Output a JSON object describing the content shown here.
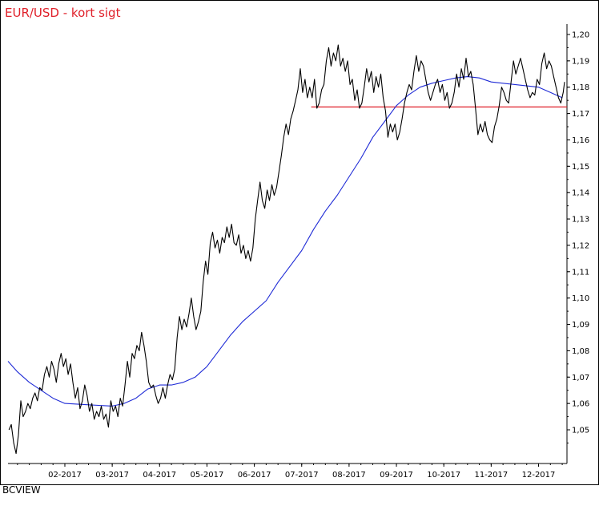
{
  "header": {
    "title": "EUR/USD - kort sigt"
  },
  "footer": {
    "brand": "BCVIEW"
  },
  "colors": {
    "price": "#000000",
    "moving_average": "#1f2bd6",
    "support": "#e0202a",
    "title": "#e0202a"
  },
  "chart_data": {
    "type": "line",
    "title": "EUR/USD - kort sigt",
    "xlabel": "",
    "ylabel": "",
    "x_tick_labels": [
      "02-2017",
      "03-2017",
      "04-2017",
      "05-2017",
      "06-2017",
      "07-2017",
      "08-2017",
      "09-2017",
      "10-2017",
      "11-2017",
      "12-2017"
    ],
    "y_tick_labels": [
      "1,20",
      "1,19",
      "1,18",
      "1,17",
      "1,16",
      "1,15",
      "1,14",
      "1,13",
      "1,12",
      "1,11",
      "1,10",
      "1,09",
      "1,08",
      "1,07",
      "1,06",
      "1,05"
    ],
    "ylim": [
      1.04,
      1.205
    ],
    "xlim_months": [
      0.8,
      12.6
    ],
    "y_axis_side": "right",
    "grid": false,
    "series": [
      {
        "style": "black-line",
        "points": [
          [
            0.82,
            1.05
          ],
          [
            0.87,
            1.052
          ],
          [
            0.92,
            1.045
          ],
          [
            0.97,
            1.041
          ],
          [
            1.02,
            1.048
          ],
          [
            1.07,
            1.061
          ],
          [
            1.12,
            1.055
          ],
          [
            1.17,
            1.057
          ],
          [
            1.22,
            1.06
          ],
          [
            1.27,
            1.058
          ],
          [
            1.32,
            1.062
          ],
          [
            1.37,
            1.064
          ],
          [
            1.42,
            1.061
          ],
          [
            1.47,
            1.066
          ],
          [
            1.52,
            1.065
          ],
          [
            1.57,
            1.071
          ],
          [
            1.62,
            1.074
          ],
          [
            1.67,
            1.07
          ],
          [
            1.72,
            1.076
          ],
          [
            1.77,
            1.073
          ],
          [
            1.82,
            1.068
          ],
          [
            1.87,
            1.075
          ],
          [
            1.92,
            1.079
          ],
          [
            1.97,
            1.074
          ],
          [
            2.02,
            1.077
          ],
          [
            2.07,
            1.071
          ],
          [
            2.12,
            1.075
          ],
          [
            2.17,
            1.068
          ],
          [
            2.22,
            1.062
          ],
          [
            2.27,
            1.066
          ],
          [
            2.32,
            1.058
          ],
          [
            2.37,
            1.061
          ],
          [
            2.42,
            1.067
          ],
          [
            2.47,
            1.063
          ],
          [
            2.52,
            1.057
          ],
          [
            2.57,
            1.06
          ],
          [
            2.62,
            1.054
          ],
          [
            2.67,
            1.057
          ],
          [
            2.72,
            1.055
          ],
          [
            2.77,
            1.059
          ],
          [
            2.82,
            1.054
          ],
          [
            2.87,
            1.056
          ],
          [
            2.92,
            1.051
          ],
          [
            2.97,
            1.061
          ],
          [
            3.02,
            1.057
          ],
          [
            3.07,
            1.059
          ],
          [
            3.12,
            1.055
          ],
          [
            3.17,
            1.062
          ],
          [
            3.22,
            1.059
          ],
          [
            3.27,
            1.067
          ],
          [
            3.32,
            1.076
          ],
          [
            3.37,
            1.07
          ],
          [
            3.42,
            1.079
          ],
          [
            3.47,
            1.077
          ],
          [
            3.52,
            1.082
          ],
          [
            3.57,
            1.08
          ],
          [
            3.62,
            1.087
          ],
          [
            3.67,
            1.082
          ],
          [
            3.72,
            1.076
          ],
          [
            3.77,
            1.068
          ],
          [
            3.82,
            1.066
          ],
          [
            3.87,
            1.067
          ],
          [
            3.92,
            1.063
          ],
          [
            3.97,
            1.06
          ],
          [
            4.02,
            1.062
          ],
          [
            4.07,
            1.066
          ],
          [
            4.12,
            1.062
          ],
          [
            4.17,
            1.067
          ],
          [
            4.22,
            1.071
          ],
          [
            4.27,
            1.069
          ],
          [
            4.32,
            1.073
          ],
          [
            4.37,
            1.085
          ],
          [
            4.42,
            1.093
          ],
          [
            4.47,
            1.088
          ],
          [
            4.52,
            1.092
          ],
          [
            4.57,
            1.089
          ],
          [
            4.62,
            1.094
          ],
          [
            4.67,
            1.1
          ],
          [
            4.72,
            1.093
          ],
          [
            4.77,
            1.088
          ],
          [
            4.82,
            1.091
          ],
          [
            4.87,
            1.095
          ],
          [
            4.92,
            1.106
          ],
          [
            4.97,
            1.114
          ],
          [
            5.02,
            1.109
          ],
          [
            5.07,
            1.121
          ],
          [
            5.12,
            1.125
          ],
          [
            5.17,
            1.119
          ],
          [
            5.22,
            1.122
          ],
          [
            5.27,
            1.117
          ],
          [
            5.32,
            1.123
          ],
          [
            5.37,
            1.121
          ],
          [
            5.42,
            1.127
          ],
          [
            5.47,
            1.123
          ],
          [
            5.52,
            1.128
          ],
          [
            5.57,
            1.121
          ],
          [
            5.62,
            1.12
          ],
          [
            5.67,
            1.124
          ],
          [
            5.72,
            1.117
          ],
          [
            5.77,
            1.12
          ],
          [
            5.82,
            1.115
          ],
          [
            5.87,
            1.118
          ],
          [
            5.92,
            1.114
          ],
          [
            5.97,
            1.119
          ],
          [
            6.02,
            1.13
          ],
          [
            6.07,
            1.137
          ],
          [
            6.12,
            1.144
          ],
          [
            6.17,
            1.137
          ],
          [
            6.22,
            1.134
          ],
          [
            6.27,
            1.141
          ],
          [
            6.32,
            1.137
          ],
          [
            6.37,
            1.143
          ],
          [
            6.42,
            1.139
          ],
          [
            6.47,
            1.142
          ],
          [
            6.52,
            1.148
          ],
          [
            6.57,
            1.154
          ],
          [
            6.62,
            1.161
          ],
          [
            6.67,
            1.166
          ],
          [
            6.72,
            1.162
          ],
          [
            6.77,
            1.168
          ],
          [
            6.82,
            1.171
          ],
          [
            6.87,
            1.175
          ],
          [
            6.92,
            1.179
          ],
          [
            6.97,
            1.187
          ],
          [
            7.02,
            1.178
          ],
          [
            7.07,
            1.183
          ],
          [
            7.12,
            1.176
          ],
          [
            7.17,
            1.18
          ],
          [
            7.22,
            1.176
          ],
          [
            7.27,
            1.183
          ],
          [
            7.32,
            1.172
          ],
          [
            7.37,
            1.174
          ],
          [
            7.42,
            1.179
          ],
          [
            7.47,
            1.181
          ],
          [
            7.52,
            1.19
          ],
          [
            7.57,
            1.195
          ],
          [
            7.62,
            1.188
          ],
          [
            7.67,
            1.193
          ],
          [
            7.72,
            1.19
          ],
          [
            7.77,
            1.196
          ],
          [
            7.82,
            1.188
          ],
          [
            7.87,
            1.191
          ],
          [
            7.92,
            1.186
          ],
          [
            7.97,
            1.19
          ],
          [
            8.02,
            1.181
          ],
          [
            8.07,
            1.183
          ],
          [
            8.12,
            1.175
          ],
          [
            8.17,
            1.179
          ],
          [
            8.22,
            1.172
          ],
          [
            8.27,
            1.174
          ],
          [
            8.32,
            1.18
          ],
          [
            8.37,
            1.187
          ],
          [
            8.42,
            1.182
          ],
          [
            8.47,
            1.186
          ],
          [
            8.52,
            1.178
          ],
          [
            8.57,
            1.184
          ],
          [
            8.62,
            1.18
          ],
          [
            8.67,
            1.185
          ],
          [
            8.72,
            1.176
          ],
          [
            8.77,
            1.171
          ],
          [
            8.82,
            1.161
          ],
          [
            8.87,
            1.166
          ],
          [
            8.92,
            1.163
          ],
          [
            8.97,
            1.166
          ],
          [
            9.02,
            1.16
          ],
          [
            9.07,
            1.163
          ],
          [
            9.12,
            1.168
          ],
          [
            9.17,
            1.174
          ],
          [
            9.22,
            1.178
          ],
          [
            9.27,
            1.181
          ],
          [
            9.32,
            1.179
          ],
          [
            9.37,
            1.186
          ],
          [
            9.42,
            1.192
          ],
          [
            9.47,
            1.186
          ],
          [
            9.52,
            1.19
          ],
          [
            9.57,
            1.188
          ],
          [
            9.62,
            1.183
          ],
          [
            9.67,
            1.178
          ],
          [
            9.72,
            1.175
          ],
          [
            9.77,
            1.178
          ],
          [
            9.82,
            1.181
          ],
          [
            9.87,
            1.183
          ],
          [
            9.92,
            1.178
          ],
          [
            9.97,
            1.181
          ],
          [
            10.02,
            1.175
          ],
          [
            10.07,
            1.178
          ],
          [
            10.12,
            1.172
          ],
          [
            10.17,
            1.174
          ],
          [
            10.22,
            1.178
          ],
          [
            10.27,
            1.185
          ],
          [
            10.32,
            1.18
          ],
          [
            10.37,
            1.187
          ],
          [
            10.42,
            1.183
          ],
          [
            10.47,
            1.191
          ],
          [
            10.52,
            1.184
          ],
          [
            10.57,
            1.186
          ],
          [
            10.62,
            1.181
          ],
          [
            10.67,
            1.172
          ],
          [
            10.72,
            1.162
          ],
          [
            10.77,
            1.166
          ],
          [
            10.82,
            1.163
          ],
          [
            10.87,
            1.167
          ],
          [
            10.92,
            1.162
          ],
          [
            10.97,
            1.16
          ],
          [
            11.02,
            1.159
          ],
          [
            11.07,
            1.165
          ],
          [
            11.12,
            1.168
          ],
          [
            11.17,
            1.173
          ],
          [
            11.22,
            1.18
          ],
          [
            11.27,
            1.178
          ],
          [
            11.32,
            1.175
          ],
          [
            11.37,
            1.174
          ],
          [
            11.42,
            1.182
          ],
          [
            11.47,
            1.19
          ],
          [
            11.52,
            1.185
          ],
          [
            11.57,
            1.188
          ],
          [
            11.62,
            1.191
          ],
          [
            11.67,
            1.187
          ],
          [
            11.72,
            1.183
          ],
          [
            11.77,
            1.179
          ],
          [
            11.82,
            1.176
          ],
          [
            11.87,
            1.178
          ],
          [
            11.92,
            1.177
          ],
          [
            11.97,
            1.183
          ],
          [
            12.02,
            1.181
          ],
          [
            12.07,
            1.189
          ],
          [
            12.12,
            1.193
          ],
          [
            12.17,
            1.187
          ],
          [
            12.22,
            1.19
          ],
          [
            12.27,
            1.188
          ],
          [
            12.32,
            1.184
          ],
          [
            12.37,
            1.18
          ],
          [
            12.42,
            1.176
          ],
          [
            12.47,
            1.174
          ],
          [
            12.52,
            1.178
          ],
          [
            12.55,
            1.182
          ]
        ]
      },
      {
        "style": "blue-moving-average",
        "points": [
          [
            0.8,
            1.076
          ],
          [
            1.0,
            1.072
          ],
          [
            1.25,
            1.068
          ],
          [
            1.5,
            1.065
          ],
          [
            1.75,
            1.062
          ],
          [
            2.0,
            1.06
          ],
          [
            2.5,
            1.0595
          ],
          [
            3.0,
            1.059
          ],
          [
            3.25,
            1.06
          ],
          [
            3.5,
            1.062
          ],
          [
            3.75,
            1.0655
          ],
          [
            4.0,
            1.067
          ],
          [
            4.25,
            1.067
          ],
          [
            4.5,
            1.068
          ],
          [
            4.75,
            1.07
          ],
          [
            5.0,
            1.074
          ],
          [
            5.25,
            1.08
          ],
          [
            5.5,
            1.086
          ],
          [
            5.75,
            1.091
          ],
          [
            6.0,
            1.095
          ],
          [
            6.25,
            1.099
          ],
          [
            6.5,
            1.106
          ],
          [
            6.75,
            1.112
          ],
          [
            7.0,
            1.118
          ],
          [
            7.25,
            1.126
          ],
          [
            7.5,
            1.133
          ],
          [
            7.75,
            1.139
          ],
          [
            8.0,
            1.146
          ],
          [
            8.25,
            1.153
          ],
          [
            8.5,
            1.161
          ],
          [
            8.75,
            1.167
          ],
          [
            9.0,
            1.173
          ],
          [
            9.25,
            1.177
          ],
          [
            9.5,
            1.18
          ],
          [
            9.75,
            1.1815
          ],
          [
            10.0,
            1.1825
          ],
          [
            10.25,
            1.1835
          ],
          [
            10.5,
            1.184
          ],
          [
            10.75,
            1.1835
          ],
          [
            11.0,
            1.182
          ],
          [
            11.25,
            1.1815
          ],
          [
            11.5,
            1.181
          ],
          [
            11.75,
            1.1805
          ],
          [
            12.0,
            1.18
          ],
          [
            12.25,
            1.178
          ],
          [
            12.5,
            1.176
          ]
        ]
      }
    ],
    "support_line": {
      "y": 1.1725,
      "x_start": 7.2,
      "x_end": 12.6
    }
  }
}
